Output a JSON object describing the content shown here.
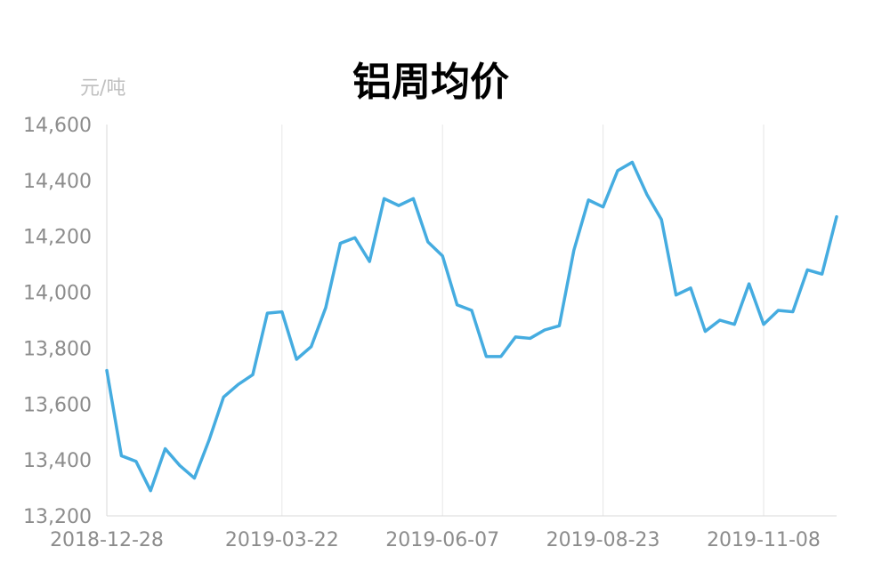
{
  "chart_data": {
    "type": "line",
    "title": "铝周均价",
    "y_unit": "元/吨",
    "xlabel": "",
    "ylabel": "",
    "ylim": [
      13200,
      14600
    ],
    "y_ticks": [
      "13,200",
      "13,400",
      "13,600",
      "13,800",
      "14,000",
      "14,200",
      "14,400",
      "14,600"
    ],
    "x_tick_labels": [
      "2018-12-28",
      "2019-03-22",
      "2019-06-07",
      "2019-08-23",
      "2019-11-08"
    ],
    "grid": "vertical",
    "color": "#45ACE0",
    "x": [
      "2018-12-28",
      "2019-01-04",
      "2019-01-11",
      "2019-01-18",
      "2019-01-25",
      "2019-02-01",
      "2019-02-08",
      "2019-02-15",
      "2019-02-22",
      "2019-03-01",
      "2019-03-08",
      "2019-03-15",
      "2019-03-22",
      "2019-03-29",
      "2019-04-05",
      "2019-04-12",
      "2019-04-19",
      "2019-04-26",
      "2019-05-03",
      "2019-05-10",
      "2019-05-17",
      "2019-05-24",
      "2019-05-31",
      "2019-06-07",
      "2019-06-14",
      "2019-06-21",
      "2019-06-28",
      "2019-07-05",
      "2019-07-12",
      "2019-07-19",
      "2019-07-26",
      "2019-08-02",
      "2019-08-09",
      "2019-08-16",
      "2019-08-23",
      "2019-08-30",
      "2019-09-06",
      "2019-09-13",
      "2019-09-20",
      "2019-09-27",
      "2019-10-04",
      "2019-10-11",
      "2019-10-18",
      "2019-10-25",
      "2019-11-01",
      "2019-11-08",
      "2019-11-15",
      "2019-11-22",
      "2019-11-29",
      "2019-12-06",
      "2019-12-13"
    ],
    "values": [
      13720,
      13415,
      13395,
      13290,
      13440,
      13380,
      13335,
      13470,
      13625,
      13670,
      13705,
      13925,
      13930,
      13760,
      13805,
      13945,
      14175,
      14195,
      14110,
      14335,
      14310,
      14335,
      14180,
      14130,
      13955,
      13935,
      13770,
      13770,
      13840,
      13835,
      13865,
      13880,
      14150,
      14330,
      14305,
      14435,
      14465,
      14350,
      14260,
      13990,
      14015,
      13860,
      13900,
      13885,
      14030,
      13885,
      13935,
      13930,
      14080,
      14065,
      14270
    ]
  }
}
